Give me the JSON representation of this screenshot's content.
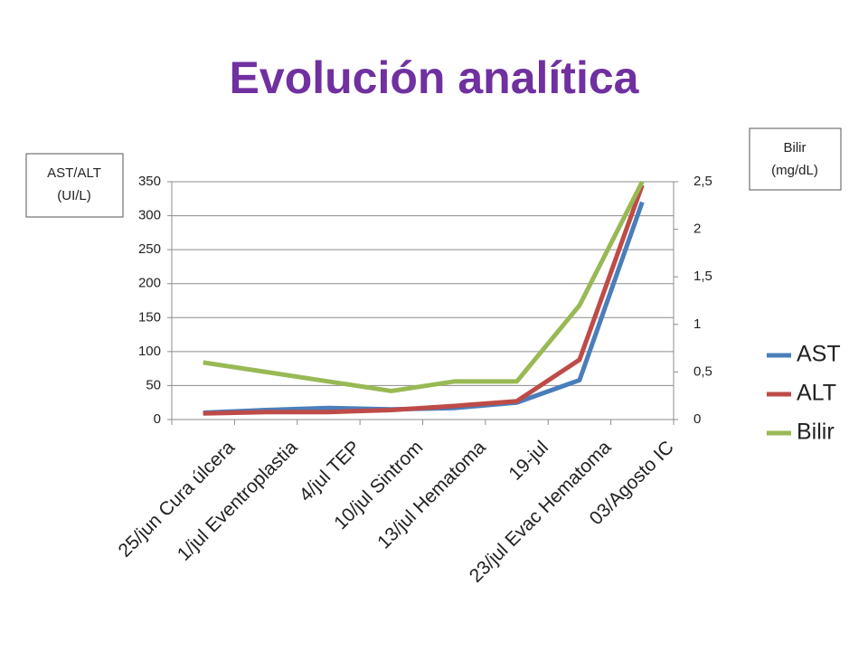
{
  "chart_data": {
    "type": "line",
    "title": "Evolución analítica",
    "ylabel": [
      "AST/ALT",
      "(UI/L)"
    ],
    "y2label": [
      "Bilir",
      "(mg/dL)"
    ],
    "categories": [
      "25/jun Cura úlcera",
      "1/jul Eventroplastia",
      "4/jul TEP",
      "10/jul Sintrom",
      "13/jul Hematoma",
      "19-jul",
      "23/jul Evac Hematoma",
      "03/Agosto IC"
    ],
    "series": [
      {
        "name": "AST",
        "color": "#4a7ebb",
        "values": [
          10,
          14,
          17,
          15,
          17,
          25,
          58,
          320
        ]
      },
      {
        "name": "ALT",
        "color": "#be4b48",
        "values": [
          9,
          11,
          11,
          14,
          20,
          27,
          88,
          345
        ]
      },
      {
        "name": "Bilir",
        "color": "#98b954",
        "axis": "y2",
        "values": [
          0.6,
          0.5,
          0.4,
          0.3,
          0.4,
          0.4,
          1.2,
          2.5
        ]
      }
    ],
    "ylim": [
      0,
      350
    ],
    "yticks": [
      0,
      50,
      100,
      150,
      200,
      250,
      300,
      350
    ],
    "y2lim": [
      0,
      2.5
    ],
    "y2ticks": [
      0,
      {
        "value": 0.5,
        "label": "0,5"
      },
      1,
      {
        "value": 1.5,
        "label": "1,5"
      },
      2,
      {
        "value": 2.5,
        "label": "2,5"
      }
    ],
    "grid": true,
    "legend": "right"
  }
}
